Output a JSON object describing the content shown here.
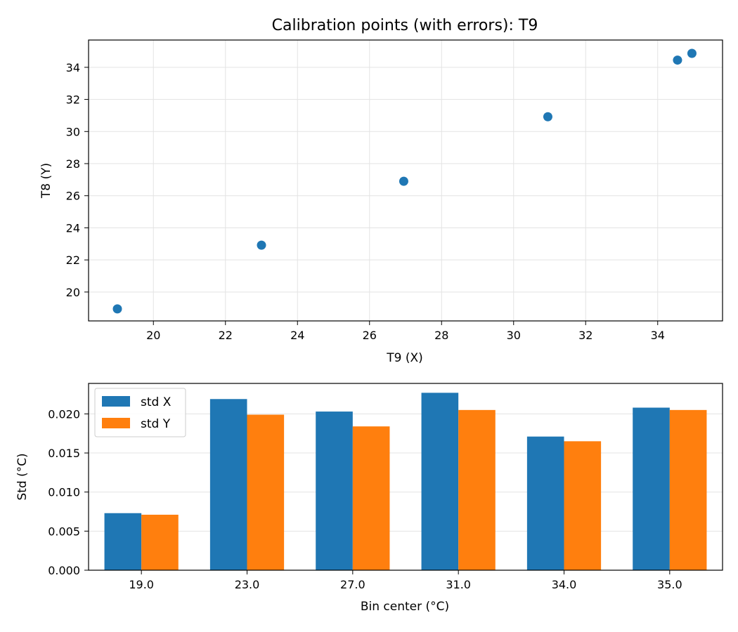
{
  "chart_data": [
    {
      "type": "scatter",
      "title": "Calibration points (with errors): T9",
      "xlabel": "T9 (X)",
      "ylabel": "T8 (Y)",
      "xlim": [
        18.2,
        35.8
      ],
      "ylim": [
        18.2,
        35.7
      ],
      "xticks": [
        20,
        22,
        24,
        26,
        28,
        30,
        32,
        34
      ],
      "yticks": [
        20,
        22,
        24,
        26,
        28,
        30,
        32,
        34
      ],
      "grid": true,
      "color": "#1f77b4",
      "points": [
        {
          "x": 19.0,
          "y": 18.95
        },
        {
          "x": 23.0,
          "y": 22.92
        },
        {
          "x": 26.95,
          "y": 26.9
        },
        {
          "x": 30.95,
          "y": 30.92
        },
        {
          "x": 34.55,
          "y": 34.45
        },
        {
          "x": 34.95,
          "y": 34.87
        }
      ]
    },
    {
      "type": "bar",
      "title": "",
      "xlabel": "Bin center (°C)",
      "ylabel": "Std (°C)",
      "categories": [
        "19.0",
        "23.0",
        "27.0",
        "31.0",
        "34.0",
        "35.0"
      ],
      "ylim": [
        0,
        0.0239
      ],
      "yticks": [
        "0.000",
        "0.005",
        "0.010",
        "0.015",
        "0.020"
      ],
      "grid": true,
      "legend_position": "top-left",
      "series": [
        {
          "name": "std X",
          "color": "#1f77b4",
          "values": [
            0.0073,
            0.0219,
            0.0203,
            0.0227,
            0.0171,
            0.0208
          ]
        },
        {
          "name": "std Y",
          "color": "#ff7f0e",
          "values": [
            0.0071,
            0.0199,
            0.0184,
            0.0205,
            0.0165,
            0.0205
          ]
        }
      ]
    }
  ]
}
